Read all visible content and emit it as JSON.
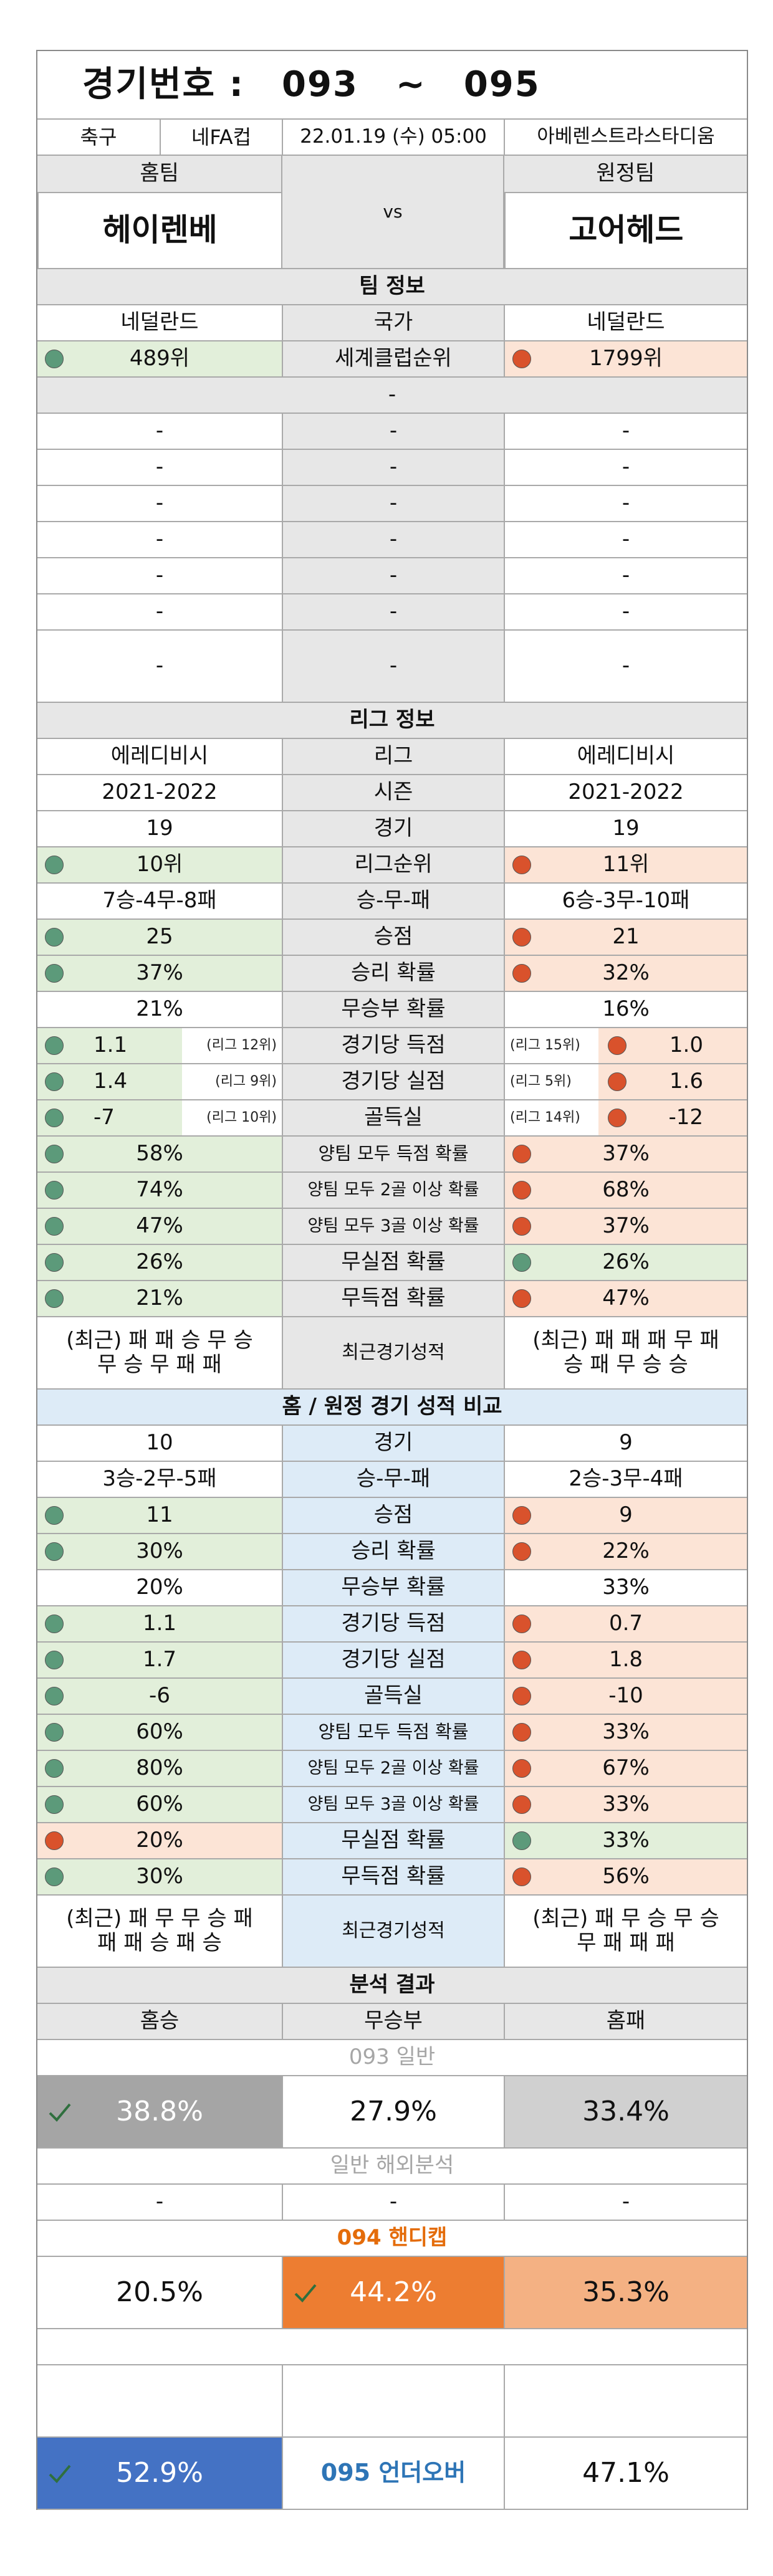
{
  "header": {
    "label": "경기번호 :",
    "from": "093",
    "sep": "~",
    "to": "095"
  },
  "match": {
    "sport": "축구",
    "league": "네FA컵",
    "datetime": "22.01.19 (수) 05:00",
    "venue": "아베렌스트라스타디움"
  },
  "teams": {
    "home_label": "홈팀",
    "away_label": "원정팀",
    "home": "헤이렌베",
    "away": "고어헤드",
    "vs": "vs"
  },
  "team_info": {
    "title": "팀 정보",
    "country": {
      "home": "네덜란드",
      "label": "국가",
      "away": "네덜란드"
    },
    "club_rank": {
      "home": "489위",
      "label": "세계클럽순위",
      "away": "1799위"
    },
    "sub": "-",
    "dash_rows": [
      [
        "-",
        "-",
        "-"
      ],
      [
        "-",
        "-",
        "-"
      ],
      [
        "-",
        "-",
        "-"
      ],
      [
        "-",
        "-",
        "-"
      ],
      [
        "-",
        "-",
        "-"
      ],
      [
        "-",
        "-",
        "-"
      ],
      [
        "-",
        "-",
        "-"
      ]
    ]
  },
  "league_info": {
    "title": "리그 정보",
    "rows": [
      {
        "home": "에레디비시",
        "label": "리그",
        "away": "에레디비시"
      },
      {
        "home": "2021-2022",
        "label": "시즌",
        "away": "2021-2022"
      },
      {
        "home": "19",
        "label": "경기",
        "away": "19"
      },
      {
        "home": "10위",
        "label": "리그순위",
        "away": "11위"
      },
      {
        "home": "7승-4무-8패",
        "label": "승-무-패",
        "away": "6승-3무-10패"
      },
      {
        "home": "25",
        "label": "승점",
        "away": "21"
      },
      {
        "home": "37%",
        "label": "승리 확률",
        "away": "32%"
      },
      {
        "home": "21%",
        "label": "무승부 확률",
        "away": "16%"
      },
      {
        "home": "1.1",
        "home_rank": "(리그 12위)",
        "label": "경기당 득점",
        "away_rank": "(리그 15위)",
        "away": "1.0"
      },
      {
        "home": "1.4",
        "home_rank": "(리그 9위)",
        "label": "경기당 실점",
        "away_rank": "(리그 5위)",
        "away": "1.6"
      },
      {
        "home": "-7",
        "home_rank": "(리그 10위)",
        "label": "골득실",
        "away_rank": "(리그 14위)",
        "away": "-12"
      },
      {
        "home": "58%",
        "label": "양팀 모두 득점 확률",
        "away": "37%"
      },
      {
        "home": "74%",
        "label": "양팀 모두 2골 이상 확률",
        "away": "68%"
      },
      {
        "home": "47%",
        "label": "양팀 모두 3골 이상 확률",
        "away": "37%"
      },
      {
        "home": "26%",
        "label": "무실점 확률",
        "away": "26%"
      },
      {
        "home": "21%",
        "label": "무득점 확률",
        "away": "47%"
      }
    ],
    "recent": {
      "home_l1": "(최근) 패 패 승 무 승",
      "home_l2": "무 승 무 패 패",
      "label": "최근경기성적",
      "away_l1": "(최근) 패 패 패 무 패",
      "away_l2": "승 패 무 승 승"
    }
  },
  "compare": {
    "title": "홈 / 원정 경기 성적 비교",
    "rows": [
      {
        "home": "10",
        "label": "경기",
        "away": "9"
      },
      {
        "home": "3승-2무-5패",
        "label": "승-무-패",
        "away": "2승-3무-4패"
      },
      {
        "home": "11",
        "label": "승점",
        "away": "9"
      },
      {
        "home": "30%",
        "label": "승리 확률",
        "away": "22%"
      },
      {
        "home": "20%",
        "label": "무승부 확률",
        "away": "33%"
      },
      {
        "home": "1.1",
        "label": "경기당 득점",
        "away": "0.7"
      },
      {
        "home": "1.7",
        "label": "경기당 실점",
        "away": "1.8"
      },
      {
        "home": "-6",
        "label": "골득실",
        "away": "-10"
      },
      {
        "home": "60%",
        "label": "양팀 모두 득점 확률",
        "away": "33%"
      },
      {
        "home": "80%",
        "label": "양팀 모두 2골 이상 확률",
        "away": "67%"
      },
      {
        "home": "60%",
        "label": "양팀 모두 3골 이상 확률",
        "away": "33%"
      },
      {
        "home": "20%",
        "label": "무실점 확률",
        "away": "33%"
      },
      {
        "home": "30%",
        "label": "무득점 확률",
        "away": "56%"
      }
    ],
    "recent": {
      "home_l1": "(최근) 패 무 무 승 패",
      "home_l2": "패 패 승 패 승",
      "label": "최근경기성적",
      "away_l1": "(최근) 패 무 승 무 승",
      "away_l2": "무 패 패 패"
    }
  },
  "analysis": {
    "title": "분석 결과",
    "cols": {
      "win": "홈승",
      "draw": "무승부",
      "loss": "홈패"
    },
    "general": {
      "title": "093 일반",
      "win": "38.8%",
      "draw": "27.9%",
      "loss": "33.4%"
    },
    "overseas": {
      "title": "일반 해외분석",
      "win": "-",
      "draw": "-",
      "loss": "-"
    },
    "handicap": {
      "title": "094 핸디캡",
      "win": "20.5%",
      "draw": "44.2%",
      "loss": "35.3%"
    },
    "underover": {
      "label": "095 언더오버",
      "under": "52.9%",
      "over": "47.1%"
    }
  },
  "colors": {
    "green": "#e2efda",
    "orange": "#fce4d6",
    "blue": "#ddebf7",
    "grey": "#e7e7e7",
    "check": "#2f6f3e"
  }
}
